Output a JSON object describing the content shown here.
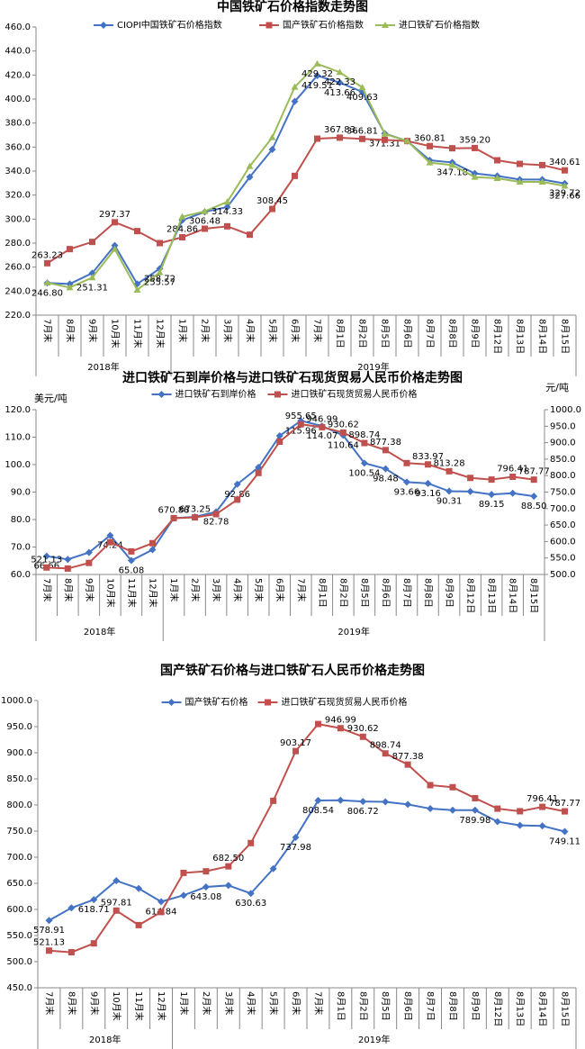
{
  "chart_data": [
    {
      "type": "line",
      "title": "中国铁矿石价格指数走势图",
      "categories": [
        "7月末",
        "8月末",
        "9月末",
        "10月末",
        "11月末",
        "12月末",
        "1月末",
        "2月末",
        "3月末",
        "4月末",
        "5月末",
        "6月末",
        "7月末",
        "8月1日",
        "8月2日",
        "8月5日",
        "8月6日",
        "8月7日",
        "8月8日",
        "8月9日",
        "8月12日",
        "8月13日",
        "8月14日",
        "8月15日"
      ],
      "x_groups": [
        "2018年",
        "2019年"
      ],
      "series": [
        {
          "name": "CIOPI中国铁矿石价格指数",
          "color": "#4472c4",
          "marker": "diamond",
          "values": [
            246.8,
            246,
            255,
            278,
            246,
            258.72,
            299,
            306,
            310,
            335,
            358,
            398,
            419.51,
            413.66,
            406,
            371.31,
            365,
            349,
            347.18,
            338,
            336,
            333,
            333,
            329.72
          ],
          "value_labels": [
            "246.80",
            null,
            null,
            null,
            null,
            "258.72",
            null,
            null,
            null,
            null,
            null,
            null,
            "419.51",
            "413.66",
            null,
            "371.31",
            null,
            null,
            "347.18",
            null,
            null,
            null,
            null,
            "329.72"
          ]
        },
        {
          "name": "国产铁矿石价格指数",
          "color": "#c0504d",
          "marker": "square",
          "values": [
            263.23,
            275,
            281,
            297.37,
            290,
            280,
            284.86,
            292,
            294,
            287,
            308.45,
            336,
            367,
            367.83,
            366.81,
            366,
            365,
            360.81,
            359,
            359.2,
            349,
            346,
            345,
            340.61
          ],
          "value_labels": [
            "263.23",
            null,
            null,
            "297.37",
            null,
            null,
            "284.86",
            null,
            null,
            null,
            "308.45",
            null,
            null,
            "367.83",
            "366.81",
            null,
            null,
            "360.81",
            null,
            "359.20",
            null,
            null,
            null,
            "340.61"
          ]
        },
        {
          "name": "进口铁矿石价格指数",
          "color": "#9bbb59",
          "marker": "triangle",
          "values": [
            247,
            243,
            251.31,
            275,
            241,
            255.57,
            302,
            306.48,
            314.33,
            344,
            368,
            410,
            429.32,
            422.33,
            409.63,
            371,
            365,
            347,
            345,
            335,
            334,
            331,
            331,
            327.66
          ],
          "value_labels": [
            null,
            null,
            "251.31",
            null,
            null,
            "255.57",
            null,
            "306.48",
            "314.33",
            null,
            null,
            null,
            "429.32",
            "422.33",
            "409.63",
            null,
            null,
            null,
            null,
            null,
            null,
            null,
            null,
            "327.66"
          ]
        }
      ],
      "ylim": [
        220,
        460
      ],
      "yticks": [
        {
          "value": 220,
          "label": "220.0"
        },
        {
          "value": 240,
          "label": "240.0"
        },
        {
          "value": 260,
          "label": "260.0"
        },
        {
          "value": 280,
          "label": "280.0"
        },
        {
          "value": 300,
          "label": "300.0"
        },
        {
          "value": 320,
          "label": "320.0"
        },
        {
          "value": 340,
          "label": "340.0"
        },
        {
          "value": 360,
          "label": "360.0"
        },
        {
          "value": 380,
          "label": "380.0"
        },
        {
          "value": 400,
          "label": "400.0"
        },
        {
          "value": 420,
          "label": "420.0"
        },
        {
          "value": 440,
          "label": "440.0"
        },
        {
          "value": 460,
          "label": "460.0"
        }
      ],
      "grid": false
    },
    {
      "type": "line",
      "title": "进口铁矿石到岸价格与进口铁矿石现货贸易人民币价格走势图",
      "y_label": "美元/吨",
      "y2_label": "元/吨",
      "categories": [
        "7月末",
        "8月末",
        "9月末",
        "10月末",
        "11月末",
        "12月末",
        "1月末",
        "2月末",
        "3月末",
        "4月末",
        "5月末",
        "6月末",
        "7月末",
        "8月1日",
        "8月2日",
        "8月5日",
        "8月6日",
        "8月7日",
        "8月8日",
        "8月9日",
        "8月12日",
        "8月13日",
        "8月14日",
        "8月15日"
      ],
      "x_groups": [
        "2018年",
        "2019年"
      ],
      "series": [
        {
          "name": "进口铁矿石到岸价格",
          "color": "#4472c4",
          "marker": "diamond",
          "values": [
            66.66,
            65.5,
            68,
            74.24,
            65.08,
            69,
            80.5,
            81,
            82.78,
            92.86,
            99,
            110.5,
            115.96,
            114.07,
            110.64,
            100.54,
            98.48,
            93.66,
            93.16,
            90.31,
            90.2,
            89.15,
            89.6,
            88.5
          ],
          "value_labels": [
            "66.66",
            null,
            null,
            "74.24",
            "65.08",
            null,
            null,
            null,
            "82.78",
            "92.86",
            null,
            null,
            "115.96",
            "114.07",
            "110.64",
            "100.54",
            "98.48",
            "93.66",
            "93.16",
            "90.31",
            null,
            "89.15",
            null,
            "88.50"
          ]
        },
        {
          "name": "进口铁矿石现货贸易人民币价格",
          "color": "#c0504d",
          "marker": "square",
          "axis": "y2",
          "values": [
            521.13,
            518,
            535,
            597.81,
            570,
            595,
            670.88,
            673.25,
            683,
            727,
            808,
            903,
            955.65,
            946.99,
            930.62,
            898.74,
            877.38,
            838,
            833.97,
            813.28,
            793,
            788,
            796.41,
            787.77
          ],
          "value_labels": [
            "521.13",
            null,
            null,
            null,
            null,
            null,
            "670.88",
            "673.25",
            null,
            null,
            null,
            null,
            "955.65",
            "946.99",
            "930.62",
            "898.74",
            "877.38",
            null,
            "833.97",
            "813.28",
            null,
            null,
            "796.41",
            "787.77"
          ]
        }
      ],
      "ylim": [
        60,
        120
      ],
      "yticks": [
        {
          "value": 60,
          "label": "60.0"
        },
        {
          "value": 70,
          "label": "70.0"
        },
        {
          "value": 80,
          "label": "80.0"
        },
        {
          "value": 90,
          "label": "90.0"
        },
        {
          "value": 100,
          "label": "100.0"
        },
        {
          "value": 110,
          "label": "110.0"
        },
        {
          "value": 120,
          "label": "120.0"
        }
      ],
      "y2lim": [
        500,
        1000
      ],
      "y2ticks": [
        {
          "value": 500,
          "label": "500.0"
        },
        {
          "value": 550,
          "label": "550.0"
        },
        {
          "value": 600,
          "label": "600.0"
        },
        {
          "value": 650,
          "label": "650.0"
        },
        {
          "value": 700,
          "label": "700.0"
        },
        {
          "value": 750,
          "label": "750.0"
        },
        {
          "value": 800,
          "label": "800.0"
        },
        {
          "value": 850,
          "label": "850.0"
        },
        {
          "value": 900,
          "label": "900.0"
        },
        {
          "value": 950,
          "label": "950.0"
        },
        {
          "value": 1000,
          "label": "1000.0"
        }
      ],
      "grid": false
    },
    {
      "type": "line",
      "title": "国产铁矿石价格与进口铁矿石人民币价格走势图",
      "categories": [
        "7月末",
        "8月末",
        "9月末",
        "10月末",
        "11月末",
        "12月末",
        "1月末",
        "2月末",
        "3月末",
        "4月末",
        "5月末",
        "6月末",
        "7月末",
        "8月1日",
        "8月2日",
        "8月5日",
        "8月6日",
        "8月7日",
        "8月8日",
        "8月9日",
        "8月12日",
        "8月13日",
        "8月14日",
        "8月15日"
      ],
      "x_groups": [
        "2018年",
        "2019年"
      ],
      "series": [
        {
          "name": "国产铁矿石价格",
          "color": "#4472c4",
          "marker": "diamond",
          "values": [
            578.91,
            603,
            618.71,
            655,
            640,
            614.84,
            627,
            643.08,
            646,
            630.63,
            678,
            737.98,
            808.54,
            809,
            806.72,
            806,
            801,
            793,
            790,
            789.98,
            768,
            761,
            760,
            749.11
          ],
          "value_labels": [
            "578.91",
            null,
            "618.71",
            null,
            null,
            "614.84",
            null,
            "643.08",
            null,
            "630.63",
            null,
            "737.98",
            "808.54",
            null,
            "806.72",
            null,
            null,
            null,
            null,
            "789.98",
            null,
            null,
            null,
            "749.11"
          ]
        },
        {
          "name": "进口铁矿石现货贸易人民币价格",
          "color": "#c0504d",
          "marker": "square",
          "values": [
            521.13,
            518,
            535,
            597.81,
            570,
            595,
            670,
            673,
            682.5,
            727,
            808,
            903.17,
            955,
            946.99,
            930.62,
            898.74,
            877.38,
            838,
            834,
            813,
            793,
            788,
            796.41,
            787.77
          ],
          "value_labels": [
            "521.13",
            null,
            null,
            "597.81",
            null,
            null,
            null,
            null,
            "682.50",
            null,
            null,
            "903.17",
            null,
            "946.99",
            "930.62",
            "898.74",
            "877.38",
            null,
            null,
            null,
            null,
            null,
            "796.41",
            "787.77"
          ]
        }
      ],
      "ylim": [
        450,
        1000
      ],
      "yticks": [
        {
          "value": 450,
          "label": "450.0"
        },
        {
          "value": 500,
          "label": "500.0"
        },
        {
          "value": 550,
          "label": "550.0"
        },
        {
          "value": 600,
          "label": "600.0"
        },
        {
          "value": 650,
          "label": "650.0"
        },
        {
          "value": 700,
          "label": "700.0"
        },
        {
          "value": 750,
          "label": "750.0"
        },
        {
          "value": 800,
          "label": "800.0"
        },
        {
          "value": 850,
          "label": "850.0"
        },
        {
          "value": 900,
          "label": "900.0"
        },
        {
          "value": 950,
          "label": "950.0"
        },
        {
          "value": 1000,
          "label": "1000.0"
        }
      ],
      "grid": false
    }
  ]
}
